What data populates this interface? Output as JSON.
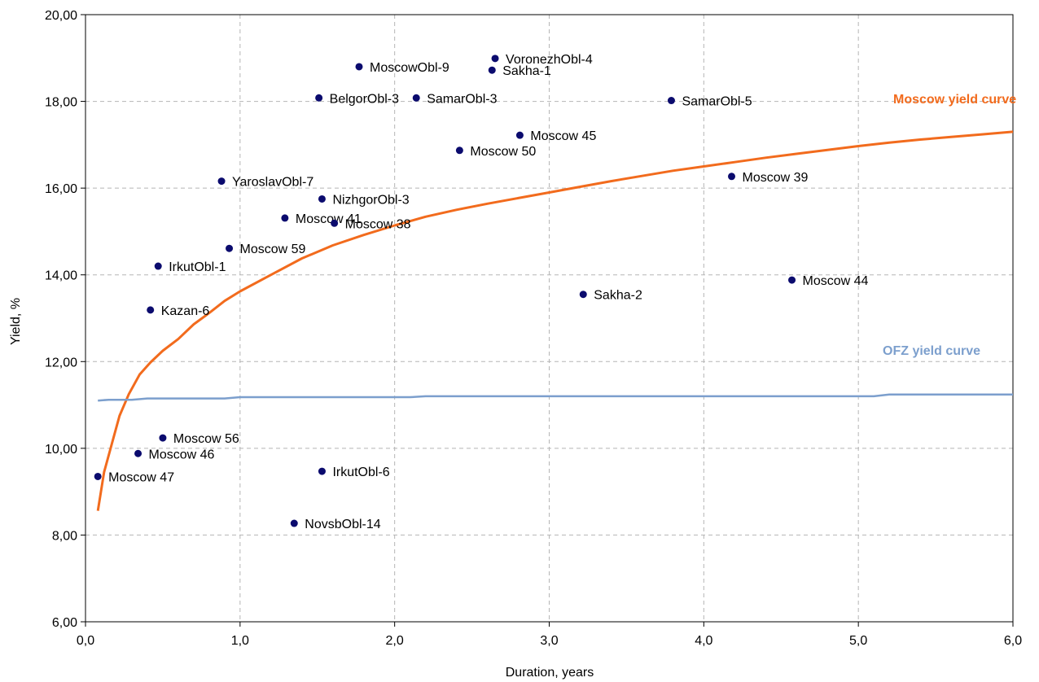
{
  "chart_data": {
    "type": "scatter",
    "xlabel": "Duration, years",
    "ylabel": "Yield, %",
    "xlim": [
      0,
      6
    ],
    "ylim": [
      6,
      20
    ],
    "x_ticks": [
      "0,0",
      "1,0",
      "2,0",
      "3,0",
      "4,0",
      "5,0",
      "6,0"
    ],
    "y_ticks": [
      "6,00",
      "8,00",
      "10,00",
      "12,00",
      "14,00",
      "16,00",
      "18,00",
      "20,00"
    ],
    "grid": true,
    "points": [
      {
        "label": "MoscowObl-9",
        "x": 1.77,
        "y": 18.8
      },
      {
        "label": "VoronezhObl-4",
        "x": 2.65,
        "y": 18.99
      },
      {
        "label": "Sakha-1",
        "x": 2.63,
        "y": 18.72
      },
      {
        "label": "BelgorObl-3",
        "x": 1.51,
        "y": 18.08
      },
      {
        "label": "SamarObl-3",
        "x": 2.14,
        "y": 18.08
      },
      {
        "label": "SamarObl-5",
        "x": 3.79,
        "y": 18.02
      },
      {
        "label": "Moscow 45",
        "x": 2.81,
        "y": 17.22
      },
      {
        "label": "Moscow 50",
        "x": 2.42,
        "y": 16.87
      },
      {
        "label": "YaroslavObl-7",
        "x": 0.88,
        "y": 16.16
      },
      {
        "label": "Moscow 39",
        "x": 4.18,
        "y": 16.27
      },
      {
        "label": "NizhgorObl-3",
        "x": 1.53,
        "y": 15.75
      },
      {
        "label": "Moscow 41",
        "x": 1.29,
        "y": 15.31
      },
      {
        "label": "Moscow 38",
        "x": 1.61,
        "y": 15.19
      },
      {
        "label": "Moscow 59",
        "x": 0.93,
        "y": 14.61
      },
      {
        "label": "IrkutObl-1",
        "x": 0.47,
        "y": 14.2
      },
      {
        "label": "Moscow 44",
        "x": 4.57,
        "y": 13.88
      },
      {
        "label": "Sakha-2",
        "x": 3.22,
        "y": 13.55
      },
      {
        "label": "Kazan-6",
        "x": 0.42,
        "y": 13.19
      },
      {
        "label": "Moscow 56",
        "x": 0.5,
        "y": 10.24
      },
      {
        "label": "Moscow 46",
        "x": 0.34,
        "y": 9.88
      },
      {
        "label": "Moscow 47",
        "x": 0.08,
        "y": 9.35
      },
      {
        "label": "IrkutObl-6",
        "x": 1.53,
        "y": 9.47
      },
      {
        "label": "NovsbObl-14",
        "x": 1.35,
        "y": 8.27
      }
    ],
    "series": [
      {
        "name": "Moscow yield curve",
        "color": "#f26b1d",
        "x": [
          0.08,
          0.12,
          0.17,
          0.22,
          0.28,
          0.35,
          0.42,
          0.5,
          0.6,
          0.7,
          0.8,
          0.9,
          1.0,
          1.2,
          1.4,
          1.6,
          1.8,
          2.0,
          2.2,
          2.4,
          2.6,
          2.8,
          3.0,
          3.2,
          3.4,
          3.6,
          3.8,
          4.0,
          4.2,
          4.4,
          4.6,
          4.8,
          5.0,
          5.2,
          5.4,
          5.6,
          5.8,
          6.0
        ],
        "y": [
          8.56,
          9.45,
          10.1,
          10.75,
          11.25,
          11.7,
          11.98,
          12.25,
          12.52,
          12.86,
          13.12,
          13.4,
          13.62,
          14.0,
          14.38,
          14.68,
          14.92,
          15.14,
          15.34,
          15.5,
          15.64,
          15.77,
          15.9,
          16.03,
          16.16,
          16.28,
          16.4,
          16.5,
          16.6,
          16.7,
          16.79,
          16.88,
          16.97,
          17.05,
          17.12,
          17.18,
          17.24,
          17.3
        ]
      },
      {
        "name": "OFZ yield curve",
        "color": "#7c9fcd",
        "x": [
          0.08,
          0.15,
          0.3,
          0.4,
          0.9,
          1.0,
          2.1,
          2.2,
          5.1,
          5.2,
          6.0
        ],
        "y": [
          11.1,
          11.12,
          11.12,
          11.15,
          11.15,
          11.18,
          11.18,
          11.2,
          11.2,
          11.24,
          11.24
        ]
      }
    ]
  }
}
